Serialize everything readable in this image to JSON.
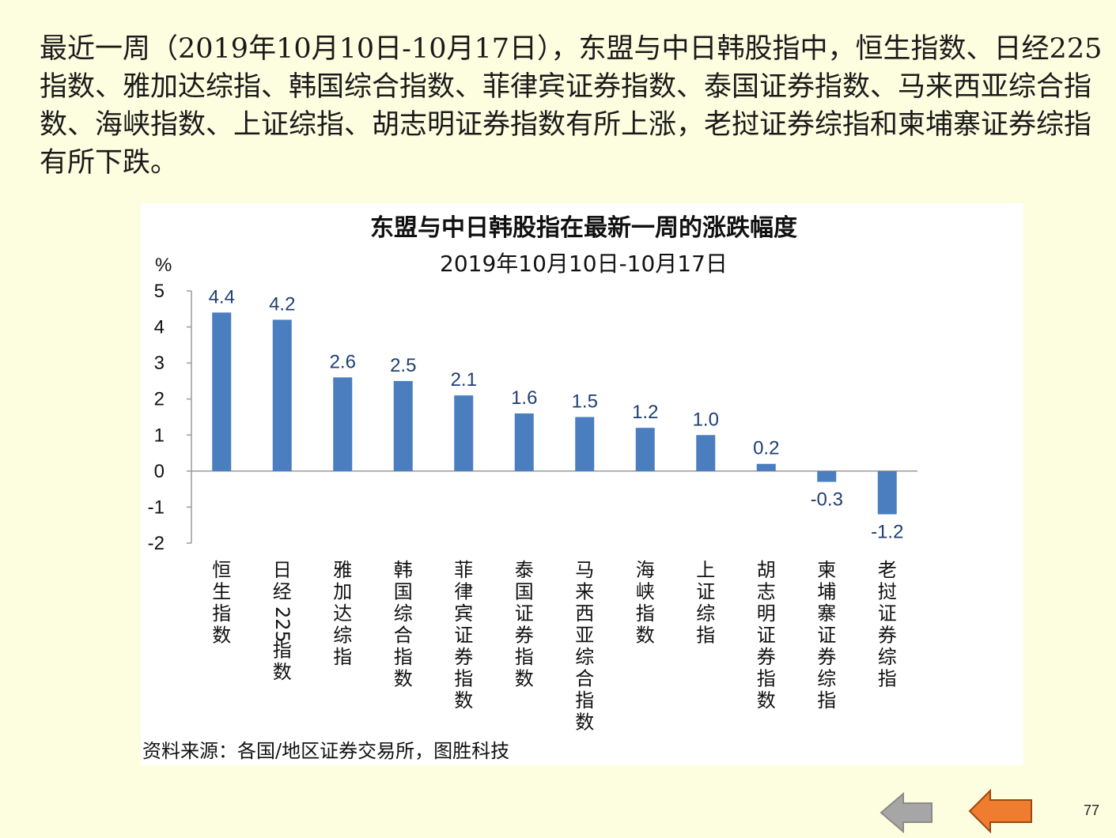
{
  "intro_text": "最近一周（2019年10月10日-10月17日），东盟与中日韩股指中，恒生指数、日经225指数、雅加达综指、韩国综合指数、菲律宾证券指数、泰国证券指数、马来西亚综合指数、海峡指数、上证综指、胡志明证券指数有所上涨，老挝证券综指和柬埔寨证券综指有所下跌。",
  "source_text": "资料来源：各国/地区证券交易所，图胜科技",
  "page_number": "77",
  "nav": {
    "back_color": "#a6a6a6",
    "forward_color": "#f07c30"
  },
  "chart_data": {
    "type": "bar",
    "title": "东盟与中日韩股指在最新一周的涨跌幅度",
    "subtitle": "2019年10月10日-10月17日",
    "ylabel": "%",
    "ylim": [
      -2,
      5
    ],
    "yticks": [
      "5",
      "4",
      "3",
      "2",
      "1",
      "0",
      "-1",
      "-2"
    ],
    "bar_color": "#4a7ebf",
    "label_color": "#1f3f73",
    "categories": [
      "恒生指数",
      "日经225指数",
      "雅加达综指",
      "韩国综合指数",
      "菲律宾证券指数",
      "泰国证券指数",
      "马来西亚综合指数",
      "海峡指数",
      "上证综指",
      "胡志明证券指数",
      "柬埔寨证券综指",
      "老挝证券综指"
    ],
    "values": [
      4.4,
      4.2,
      2.6,
      2.5,
      2.1,
      1.6,
      1.5,
      1.2,
      1.0,
      0.2,
      -0.3,
      -1.2
    ],
    "value_labels": [
      "4.4",
      "4.2",
      "2.6",
      "2.5",
      "2.1",
      "1.6",
      "1.5",
      "1.2",
      "1.0",
      "0.2",
      "-0.3",
      "-1.2"
    ]
  }
}
